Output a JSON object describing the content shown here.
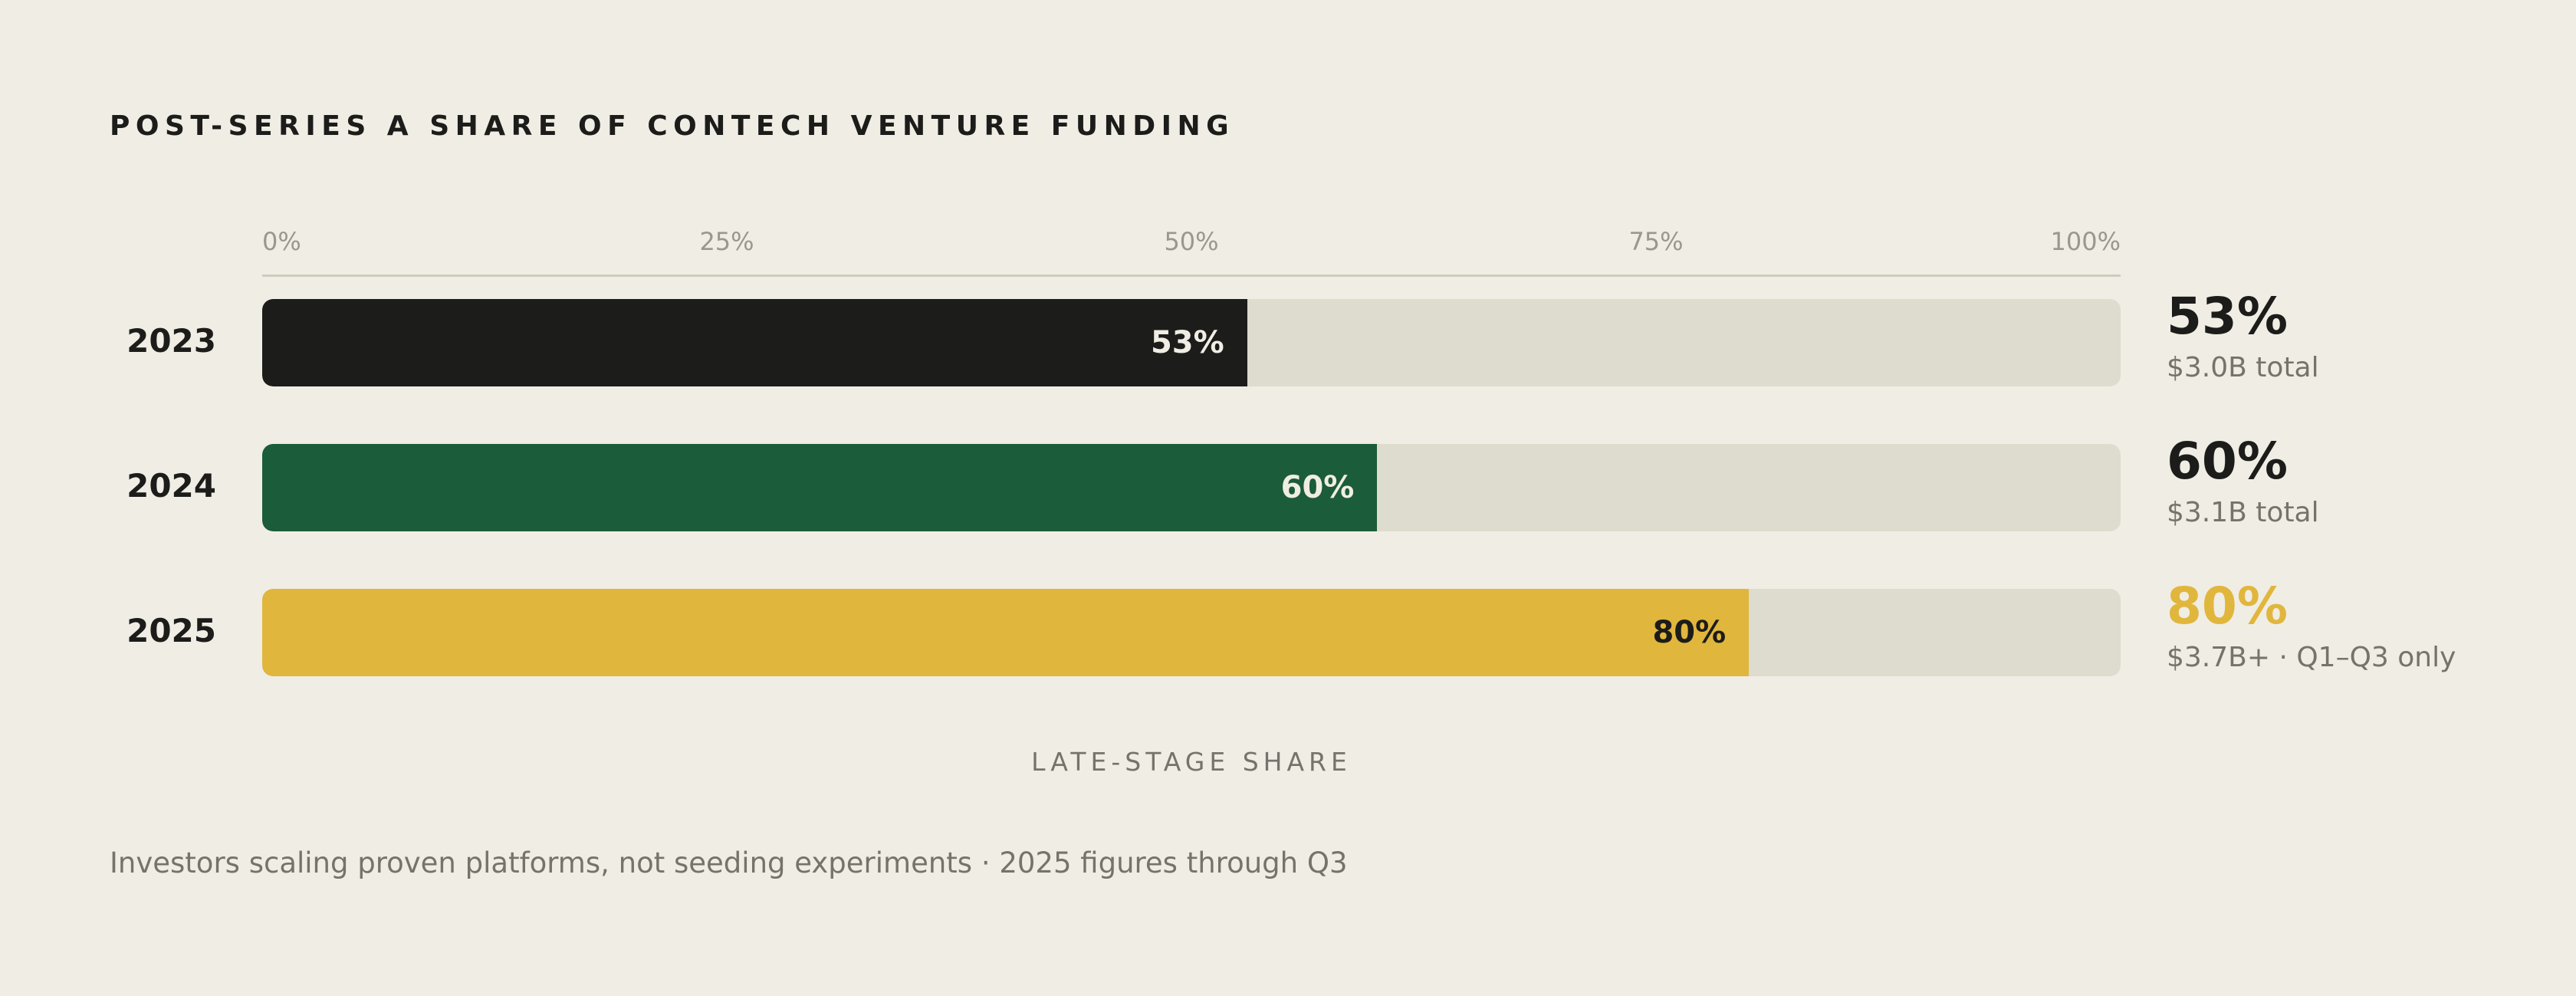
{
  "chart_data": {
    "type": "bar",
    "orientation": "horizontal",
    "title": "POST-SERIES A SHARE OF CONTECH VENTURE FUNDING",
    "xlabel": "LATE-STAGE SHARE",
    "ylabel": "",
    "xlim": [
      0,
      100
    ],
    "x_ticks": [
      "0%",
      "25%",
      "50%",
      "75%",
      "100%"
    ],
    "grid": false,
    "categories": [
      "2023",
      "2024",
      "2025"
    ],
    "values": [
      53,
      60,
      80
    ],
    "bars": [
      {
        "year": "2023",
        "value": 53,
        "bar_label": "53%",
        "side_value": "53%",
        "side_note": "$3.0B total",
        "color": "#1c1c1a",
        "label_color": "#f0ede4",
        "side_color": "#1c1c1a"
      },
      {
        "year": "2024",
        "value": 60,
        "bar_label": "60%",
        "side_value": "60%",
        "side_note": "$3.1B total",
        "color": "#1b5c3a",
        "label_color": "#f0ede4",
        "side_color": "#1c1c1a"
      },
      {
        "year": "2025",
        "value": 80,
        "bar_label": "80%",
        "side_value": "80%",
        "side_note": "$3.7B+ · Q1–Q3 only",
        "color": "#e1b63c",
        "label_color": "#1c1c1a",
        "side_color": "#e1b63c"
      }
    ],
    "track_color": "#dedbcf",
    "footnote": "Investors scaling proven platforms, not seeding experiments  ·  2025 figures through Q3"
  }
}
